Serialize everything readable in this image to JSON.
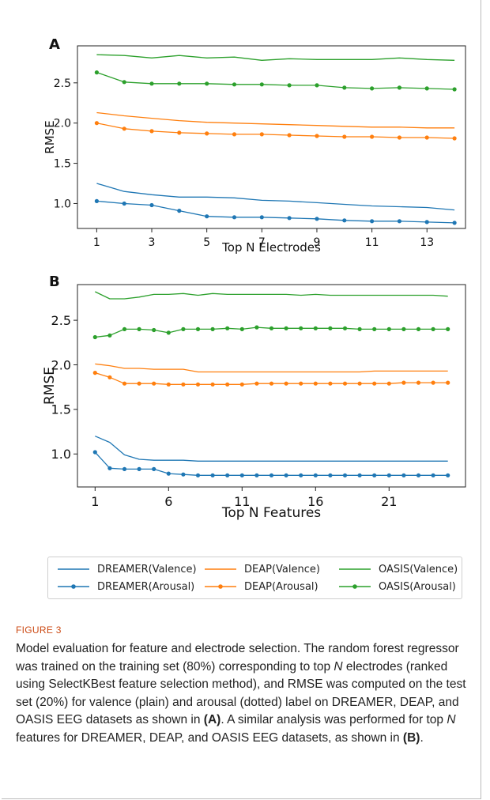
{
  "figure_label": "FIGURE 3",
  "caption": {
    "segments": [
      {
        "text": "Model evaluation for feature and electrode selection. The random forest regressor was trained on the training set (80%) corresponding to top "
      },
      {
        "text": "N",
        "style": "italic"
      },
      {
        "text": " electrodes (ranked using SelectKBest feature selection method), and RMSE was computed on the test set (20%) for valence (plain) and arousal (dotted) label on DREAMER, DEAP, and OASIS EEG datasets as shown in "
      },
      {
        "text": "(A)",
        "style": "bold"
      },
      {
        "text": ". A similar analysis was performed for top "
      },
      {
        "text": "N",
        "style": "italic"
      },
      {
        "text": " features for DREAMER, DEAP, and OASIS EEG datasets, as shown in "
      },
      {
        "text": "(B)",
        "style": "bold"
      },
      {
        "text": "."
      }
    ]
  },
  "colors": {
    "dreamer": "#1f77b4",
    "deap": "#ff7f0e",
    "oasis": "#2ca02c"
  },
  "legend": {
    "placement": "bottom",
    "entries": [
      {
        "label": "DREAMER(Valence)",
        "color": "#1f77b4",
        "marker": false
      },
      {
        "label": "DEAP(Valence)",
        "color": "#ff7f0e",
        "marker": false
      },
      {
        "label": "OASIS(Valence)",
        "color": "#2ca02c",
        "marker": false
      },
      {
        "label": "DREAMER(Arousal)",
        "color": "#1f77b4",
        "marker": true
      },
      {
        "label": "DEAP(Arousal)",
        "color": "#ff7f0e",
        "marker": true
      },
      {
        "label": "OASIS(Arousal)",
        "color": "#2ca02c",
        "marker": true
      }
    ]
  },
  "chart_data": [
    {
      "type": "line",
      "panel": "A",
      "xlabel": "Top N Electrodes",
      "ylabel": "RMSE",
      "xlim": [
        0.3,
        14.4
      ],
      "ylim": [
        0.69,
        2.96
      ],
      "xticks": [
        1,
        3,
        5,
        7,
        9,
        11,
        13
      ],
      "yticks": [
        1.0,
        1.5,
        2.0,
        2.5
      ],
      "yticklabels": [
        "1.0",
        "1.5",
        "2.0",
        "2.5"
      ],
      "grid": false,
      "x": [
        1,
        2,
        3,
        4,
        5,
        6,
        7,
        8,
        9,
        10,
        11,
        12,
        13,
        14
      ],
      "series": [
        {
          "name": "DREAMER(Valence)",
          "color": "#1f77b4",
          "marker": false,
          "values": [
            1.25,
            1.15,
            1.11,
            1.08,
            1.08,
            1.07,
            1.04,
            1.03,
            1.01,
            0.99,
            0.97,
            0.96,
            0.95,
            0.92
          ]
        },
        {
          "name": "DREAMER(Arousal)",
          "color": "#1f77b4",
          "marker": true,
          "values": [
            1.03,
            1.0,
            0.98,
            0.91,
            0.84,
            0.83,
            0.83,
            0.82,
            0.81,
            0.79,
            0.78,
            0.78,
            0.77,
            0.76
          ]
        },
        {
          "name": "DEAP(Valence)",
          "color": "#ff7f0e",
          "marker": false,
          "values": [
            2.13,
            2.09,
            2.06,
            2.03,
            2.01,
            2.0,
            1.99,
            1.98,
            1.97,
            1.96,
            1.95,
            1.95,
            1.94,
            1.94
          ]
        },
        {
          "name": "DEAP(Arousal)",
          "color": "#ff7f0e",
          "marker": true,
          "values": [
            2.0,
            1.93,
            1.9,
            1.88,
            1.87,
            1.86,
            1.86,
            1.85,
            1.84,
            1.83,
            1.83,
            1.82,
            1.82,
            1.81
          ]
        },
        {
          "name": "OASIS(Valence)",
          "color": "#2ca02c",
          "marker": false,
          "values": [
            2.85,
            2.84,
            2.81,
            2.84,
            2.81,
            2.82,
            2.78,
            2.8,
            2.79,
            2.79,
            2.79,
            2.81,
            2.79,
            2.78
          ]
        },
        {
          "name": "OASIS(Arousal)",
          "color": "#2ca02c",
          "marker": true,
          "values": [
            2.63,
            2.51,
            2.49,
            2.49,
            2.49,
            2.48,
            2.48,
            2.47,
            2.47,
            2.44,
            2.43,
            2.44,
            2.43,
            2.42
          ]
        }
      ]
    },
    {
      "type": "line",
      "panel": "B",
      "xlabel": "Top N Features",
      "ylabel": "RMSE",
      "xlim": [
        -0.2,
        26.2
      ],
      "ylim": [
        0.63,
        2.9
      ],
      "xticks": [
        1,
        6,
        11,
        16,
        21
      ],
      "yticks": [
        1.0,
        1.5,
        2.0,
        2.5
      ],
      "yticklabels": [
        "1.0",
        "1.5",
        "2.0",
        "2.5"
      ],
      "grid": false,
      "x": [
        1,
        2,
        3,
        4,
        5,
        6,
        7,
        8,
        9,
        10,
        11,
        12,
        13,
        14,
        15,
        16,
        17,
        18,
        19,
        20,
        21,
        22,
        23,
        24,
        25
      ],
      "series": [
        {
          "name": "DREAMER(Valence)",
          "color": "#1f77b4",
          "marker": false,
          "values": [
            1.2,
            1.13,
            0.99,
            0.94,
            0.93,
            0.93,
            0.93,
            0.92,
            0.92,
            0.92,
            0.92,
            0.92,
            0.92,
            0.92,
            0.92,
            0.92,
            0.92,
            0.92,
            0.92,
            0.92,
            0.92,
            0.92,
            0.92,
            0.92,
            0.92
          ]
        },
        {
          "name": "DREAMER(Arousal)",
          "color": "#1f77b4",
          "marker": true,
          "values": [
            1.02,
            0.84,
            0.83,
            0.83,
            0.83,
            0.78,
            0.77,
            0.76,
            0.76,
            0.76,
            0.76,
            0.76,
            0.76,
            0.76,
            0.76,
            0.76,
            0.76,
            0.76,
            0.76,
            0.76,
            0.76,
            0.76,
            0.76,
            0.76,
            0.76
          ]
        },
        {
          "name": "DEAP(Valence)",
          "color": "#ff7f0e",
          "marker": false,
          "values": [
            2.01,
            1.99,
            1.96,
            1.96,
            1.95,
            1.95,
            1.95,
            1.92,
            1.92,
            1.92,
            1.92,
            1.92,
            1.92,
            1.92,
            1.92,
            1.92,
            1.92,
            1.92,
            1.92,
            1.93,
            1.93,
            1.93,
            1.93,
            1.93,
            1.93
          ]
        },
        {
          "name": "DEAP(Arousal)",
          "color": "#ff7f0e",
          "marker": true,
          "values": [
            1.91,
            1.86,
            1.79,
            1.79,
            1.79,
            1.78,
            1.78,
            1.78,
            1.78,
            1.78,
            1.78,
            1.79,
            1.79,
            1.79,
            1.79,
            1.79,
            1.79,
            1.79,
            1.79,
            1.79,
            1.79,
            1.8,
            1.8,
            1.8,
            1.8
          ]
        },
        {
          "name": "OASIS(Valence)",
          "color": "#2ca02c",
          "marker": false,
          "values": [
            2.82,
            2.74,
            2.74,
            2.76,
            2.79,
            2.79,
            2.8,
            2.78,
            2.8,
            2.79,
            2.79,
            2.79,
            2.79,
            2.79,
            2.78,
            2.79,
            2.78,
            2.78,
            2.78,
            2.78,
            2.78,
            2.78,
            2.78,
            2.78,
            2.77
          ]
        },
        {
          "name": "OASIS(Arousal)",
          "color": "#2ca02c",
          "marker": true,
          "values": [
            2.31,
            2.33,
            2.4,
            2.4,
            2.39,
            2.36,
            2.4,
            2.4,
            2.4,
            2.41,
            2.4,
            2.42,
            2.41,
            2.41,
            2.41,
            2.41,
            2.41,
            2.41,
            2.4,
            2.4,
            2.4,
            2.4,
            2.4,
            2.4,
            2.4
          ]
        }
      ]
    }
  ]
}
